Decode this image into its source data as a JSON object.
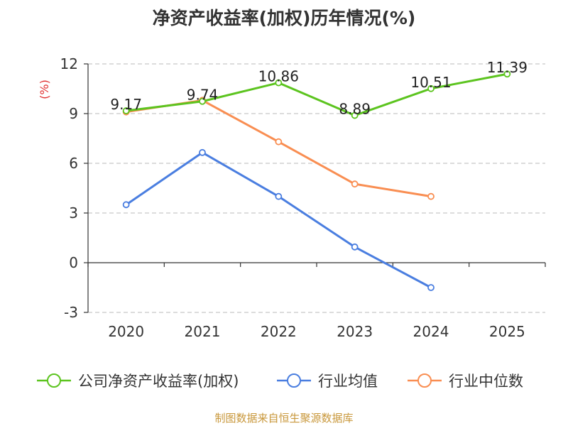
{
  "chart_data": {
    "type": "line",
    "title": "净资产收益率(加权)历年情况(%)",
    "ylabel": "(%)",
    "xlabel": "",
    "categories": [
      "2020",
      "2021",
      "2022",
      "2023",
      "2024",
      "2025"
    ],
    "ylim": [
      -3,
      12
    ],
    "yticks": [
      -3,
      0,
      3,
      6,
      9,
      12
    ],
    "grid": true,
    "legend_position": "bottom",
    "series": [
      {
        "name": "公司净资产收益率(加权)",
        "color": "#5cc41f",
        "values": [
          9.17,
          9.74,
          10.86,
          8.89,
          10.51,
          11.39
        ],
        "labels": [
          "9.17",
          "9.74",
          "10.86",
          "8.89",
          "10.51",
          "11.39"
        ]
      },
      {
        "name": "行业均值",
        "color": "#4a7ee0",
        "values": [
          3.5,
          6.65,
          4.0,
          0.95,
          -1.5,
          null
        ],
        "labels": null
      },
      {
        "name": "行业中位数",
        "color": "#f98e52",
        "values": [
          9.1,
          9.8,
          7.3,
          4.75,
          4.0,
          null
        ],
        "labels": null
      }
    ],
    "source": "制图数据来自恒生聚源数据库",
    "colors": {
      "axis": "#333333",
      "grid": "#c8c8c8",
      "unit": "#e03030",
      "source": "#c8973a"
    }
  }
}
